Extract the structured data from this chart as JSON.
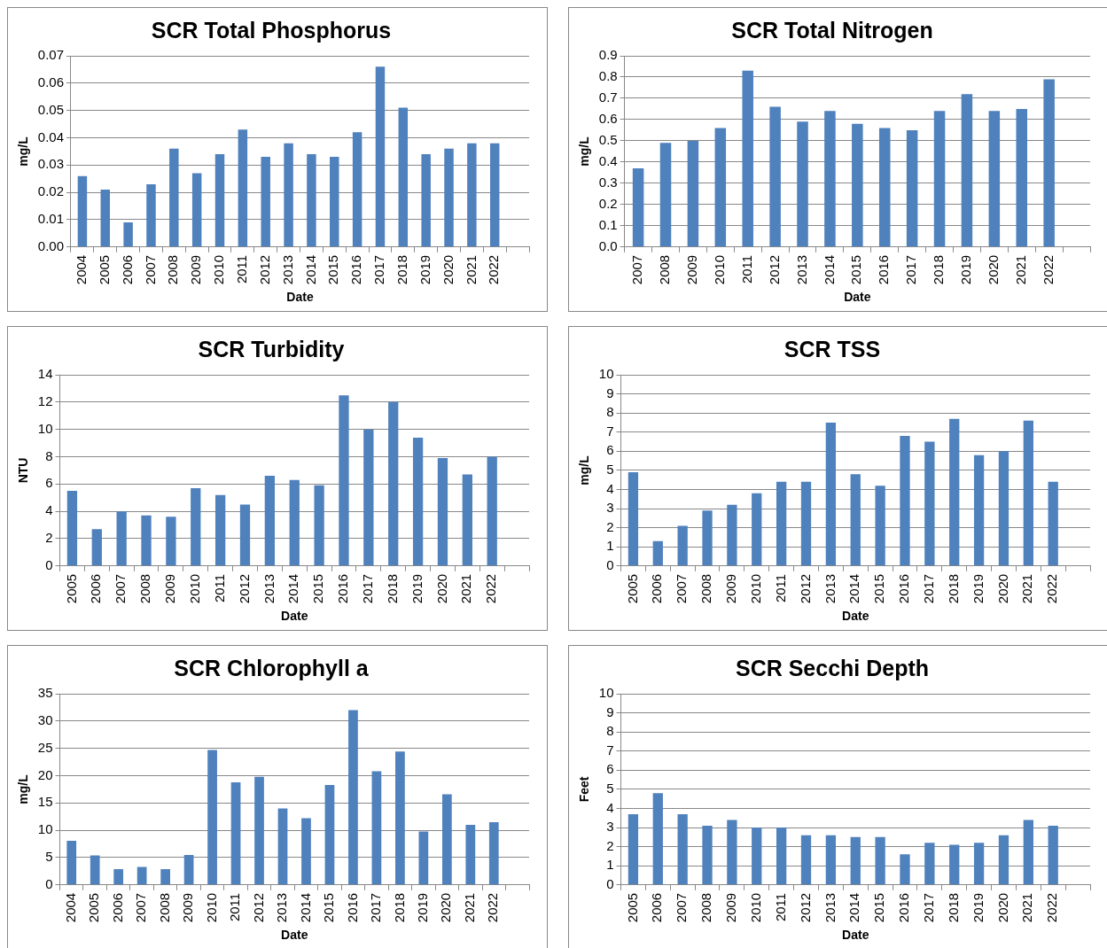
{
  "chart_data": [
    {
      "type": "bar",
      "title": "SCR Total Phosphorus",
      "xlabel": "Date",
      "ylabel": "mg/L",
      "grid": "y",
      "color": "#4f81bd",
      "categories": [
        "2004",
        "2005",
        "2006",
        "2007",
        "2008",
        "2009",
        "2010",
        "2011",
        "2012",
        "2013",
        "2014",
        "2015",
        "2016",
        "2017",
        "2018",
        "2019",
        "2020",
        "2021",
        "2022",
        null
      ],
      "values": [
        0.026,
        0.021,
        0.009,
        0.023,
        0.036,
        0.027,
        0.034,
        0.043,
        0.033,
        0.038,
        0.034,
        0.033,
        0.042,
        0.066,
        0.051,
        0.034,
        0.036,
        0.038,
        0.038,
        null
      ],
      "ylim": [
        0,
        0.07
      ],
      "yticks": [
        {
          "value": 0,
          "label": "0.00"
        },
        {
          "value": 0.01,
          "label": "0.01"
        },
        {
          "value": 0.02,
          "label": "0.02"
        },
        {
          "value": 0.03,
          "label": "0.03"
        },
        {
          "value": 0.04,
          "label": "0.04"
        },
        {
          "value": 0.05,
          "label": "0.05"
        },
        {
          "value": 0.06,
          "label": "0.06"
        },
        {
          "value": 0.07,
          "label": "0.07"
        }
      ]
    },
    {
      "type": "bar",
      "title": "SCR Total Nitrogen",
      "xlabel": "Date",
      "ylabel": "mg/L",
      "grid": "y",
      "color": "#4f81bd",
      "categories": [
        "2007",
        "2008",
        "2009",
        "2010",
        "2011",
        "2012",
        "2013",
        "2014",
        "2015",
        "2016",
        "2017",
        "2018",
        "2019",
        "2020",
        "2021",
        "2022",
        null
      ],
      "values": [
        0.37,
        0.49,
        0.5,
        0.56,
        0.83,
        0.66,
        0.59,
        0.64,
        0.58,
        0.56,
        0.55,
        0.64,
        0.72,
        0.64,
        0.65,
        0.79,
        null
      ],
      "ylim": [
        0,
        0.9
      ],
      "yticks": [
        {
          "value": 0,
          "label": "0.0"
        },
        0.1,
        0.2,
        0.3,
        0.4,
        0.5,
        0.6,
        0.7,
        0.8,
        0.9
      ]
    },
    {
      "type": "bar",
      "title": "SCR Turbidity",
      "xlabel": "Date",
      "ylabel": "NTU",
      "grid": "y",
      "color": "#4f81bd",
      "categories": [
        "2005",
        "2006",
        "2007",
        "2008",
        "2009",
        "2010",
        "2011",
        "2012",
        "2013",
        "2014",
        "2015",
        "2016",
        "2017",
        "2018",
        "2019",
        "2020",
        "2021",
        "2022",
        null
      ],
      "values": [
        5.5,
        2.7,
        4.0,
        3.7,
        3.6,
        5.7,
        5.2,
        4.5,
        6.6,
        6.3,
        5.9,
        12.5,
        10.0,
        12.0,
        9.4,
        7.9,
        6.7,
        8.0,
        null
      ],
      "ylim": [
        0,
        14
      ],
      "yticks": [
        0,
        2,
        4,
        6,
        8,
        10,
        12,
        14
      ]
    },
    {
      "type": "bar",
      "title": "SCR TSS",
      "xlabel": "Date",
      "ylabel": "mg/L",
      "grid": "y",
      "color": "#4f81bd",
      "categories": [
        "2005",
        "2006",
        "2007",
        "2008",
        "2009",
        "2010",
        "2011",
        "2012",
        "2013",
        "2014",
        "2015",
        "2016",
        "2017",
        "2018",
        "2019",
        "2020",
        "2021",
        "2022",
        null
      ],
      "values": [
        4.9,
        1.3,
        2.1,
        2.9,
        3.2,
        3.8,
        4.4,
        4.4,
        7.5,
        4.8,
        4.2,
        6.8,
        6.5,
        7.7,
        5.8,
        6.0,
        7.6,
        4.4,
        null
      ],
      "ylim": [
        0,
        10
      ],
      "yticks": [
        0,
        1,
        2,
        3,
        4,
        5,
        6,
        7,
        8,
        9,
        10
      ]
    },
    {
      "type": "bar",
      "title": "SCR Chlorophyll a",
      "xlabel": "Date",
      "ylabel": "mg/L",
      "grid": "y",
      "color": "#4f81bd",
      "categories": [
        "2004",
        "2005",
        "2006",
        "2007",
        "2008",
        "2009",
        "2010",
        "2011",
        "2012",
        "2013",
        "2014",
        "2015",
        "2016",
        "2017",
        "2018",
        "2019",
        "2020",
        "2021",
        "2022",
        null
      ],
      "values": [
        8.1,
        5.4,
        2.9,
        3.3,
        2.9,
        5.5,
        24.7,
        18.8,
        19.8,
        14.0,
        12.2,
        18.3,
        32.0,
        20.8,
        24.4,
        9.8,
        16.6,
        11.0,
        11.5,
        null
      ],
      "ylim": [
        0,
        35
      ],
      "yticks": [
        0,
        5,
        10,
        15,
        20,
        25,
        30,
        35
      ]
    },
    {
      "type": "bar",
      "title": "SCR Secchi Depth",
      "xlabel": "Date",
      "ylabel": "Feet",
      "grid": "y",
      "color": "#4f81bd",
      "categories": [
        "2005",
        "2006",
        "2007",
        "2008",
        "2009",
        "2010",
        "2011",
        "2012",
        "2013",
        "2014",
        "2015",
        "2016",
        "2017",
        "2018",
        "2019",
        "2020",
        "2021",
        "2022",
        null
      ],
      "values": [
        3.7,
        4.8,
        3.7,
        3.1,
        3.4,
        3.0,
        3.0,
        2.6,
        2.6,
        2.5,
        2.5,
        1.6,
        2.2,
        2.1,
        2.2,
        2.6,
        3.4,
        3.1,
        null
      ],
      "ylim": [
        0,
        10
      ],
      "yticks": [
        0,
        1,
        2,
        3,
        4,
        5,
        6,
        7,
        8,
        9,
        10
      ]
    }
  ]
}
